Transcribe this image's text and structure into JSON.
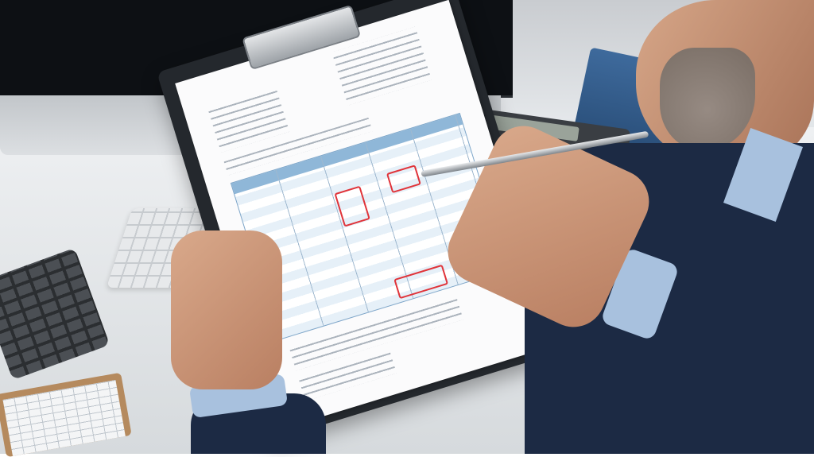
{
  "scene": {
    "colors": {
      "desk": "#e3e6e9",
      "monitor": "#0d1014",
      "clipboard": "#24282d",
      "table_header": "#8fb7d8",
      "table_row": "#e6f0f8",
      "correction_marks": "#e0343a",
      "suit": "#1c2a44",
      "shirt": "#a8c1de",
      "skin": "#c98f70"
    },
    "icons": [
      "clipboard",
      "calculator",
      "keyboard",
      "pen",
      "monitor",
      "books"
    ]
  }
}
